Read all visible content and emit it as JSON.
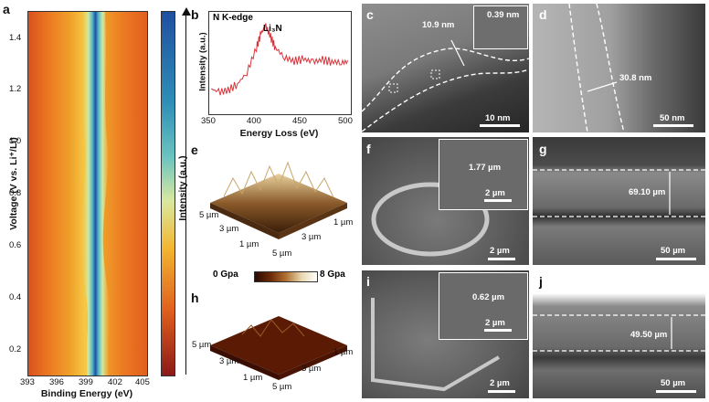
{
  "panels": {
    "a": {
      "label": "a",
      "ylabel": "Voltage (V vs. Li⁺/Li)",
      "xlabel": "Binding Energy (eV)",
      "yticks": [
        "1.4",
        "1.2",
        "1.0",
        "0.8",
        "0.6",
        "0.4",
        "0.2"
      ],
      "xticks": [
        "393",
        "396",
        "399",
        "402",
        "405"
      ],
      "colorbar_label": "Intensity (a.u.)"
    },
    "b": {
      "label": "b",
      "title": "N K-edge",
      "peak_label": "Li₃N",
      "ylabel": "Intensity (a.u.)",
      "xlabel": "Energy Loss (eV)",
      "xticks": [
        "350",
        "400",
        "450",
        "500"
      ]
    },
    "c": {
      "label": "c",
      "thickness": "10.9 nm",
      "inset": "0.39 nm",
      "scale": "10 nm"
    },
    "d": {
      "label": "d",
      "thickness": "30.8 nm",
      "scale": "50 nm"
    },
    "e": {
      "label": "e",
      "axis_labels": [
        "5 µm",
        "3 µm",
        "1 µm",
        "1 µm",
        "3 µm",
        "5 µm"
      ]
    },
    "f": {
      "label": "f",
      "inset_meas": "1.77 µm",
      "inset_scale": "2 µm",
      "scale": "2 µm"
    },
    "g": {
      "label": "g",
      "thickness": "69.10 µm",
      "scale": "50 µm"
    },
    "h": {
      "label": "h",
      "cbar_min": "0 Gpa",
      "cbar_max": "8 Gpa",
      "axis_labels": [
        "5 µm",
        "3 µm",
        "1 µm",
        "1 µm",
        "3 µm",
        "5 µm"
      ]
    },
    "i": {
      "label": "i",
      "inset_meas": "0.62 µm",
      "inset_scale": "2 µm",
      "scale": "2 µm"
    },
    "j": {
      "label": "j",
      "thickness": "49.50 µm",
      "scale": "50 µm"
    }
  },
  "colors": {
    "heatmap_low": "#8b1a1a",
    "heatmap_mid": "#f2b632",
    "heatmap_high": "#1f4fa0",
    "spectrum": "#d9343c"
  },
  "chart_data": [
    {
      "type": "heatmap",
      "xlabel": "Binding Energy (eV)",
      "ylabel": "Voltage (V vs. Li⁺/Li)",
      "xlim": [
        393,
        405
      ],
      "ylim": [
        0.1,
        1.5
      ],
      "peak_center_ev": [
        {
          "voltage": 0.1,
          "ev": 399.3
        },
        {
          "voltage": 0.4,
          "ev": 399.8
        },
        {
          "voltage": 0.7,
          "ev": 399.0
        },
        {
          "voltage": 1.0,
          "ev": 399.6
        },
        {
          "voltage": 1.3,
          "ev": 399.4
        },
        {
          "voltage": 1.5,
          "ev": 399.5
        }
      ]
    },
    {
      "type": "line",
      "title": "N K-edge",
      "xlabel": "Energy Loss (eV)",
      "ylabel": "Intensity (a.u.)",
      "xlim": [
        350,
        500
      ],
      "x": [
        352,
        360,
        370,
        380,
        390,
        400,
        405,
        410,
        415,
        420,
        430,
        440,
        450,
        460,
        470,
        480,
        490,
        498
      ],
      "y": [
        0.22,
        0.18,
        0.2,
        0.28,
        0.42,
        0.72,
        0.9,
        0.98,
        0.85,
        0.72,
        0.6,
        0.56,
        0.58,
        0.55,
        0.57,
        0.55,
        0.54,
        0.55
      ]
    }
  ]
}
